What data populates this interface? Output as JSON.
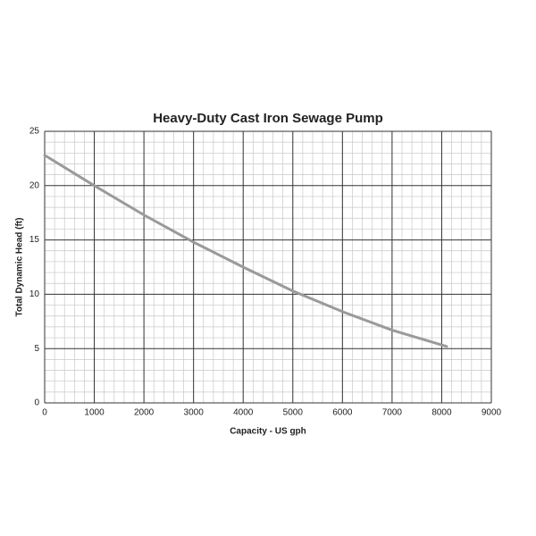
{
  "chart_data": {
    "type": "line",
    "title": "Heavy-Duty Cast Iron Sewage Pump",
    "x_label": "Capacity - US gph",
    "y_label": "Total Dynamic Head (ft)",
    "x": [
      0,
      1000,
      2000,
      3000,
      4000,
      5000,
      6000,
      7000,
      8100
    ],
    "series": [
      {
        "color": "#9a9a9a",
        "values": [
          22.8,
          20.0,
          17.3,
          14.8,
          12.5,
          10.3,
          8.4,
          6.7,
          5.2
        ]
      }
    ],
    "xlim": [
      0,
      9000
    ],
    "ylim": [
      0,
      25
    ],
    "xticks": [
      0,
      1000,
      2000,
      3000,
      4000,
      5000,
      6000,
      7000,
      8000,
      9000
    ],
    "yticks": [
      0,
      5,
      10,
      15,
      20,
      25
    ],
    "grid": true,
    "minor_divisions": 5
  }
}
